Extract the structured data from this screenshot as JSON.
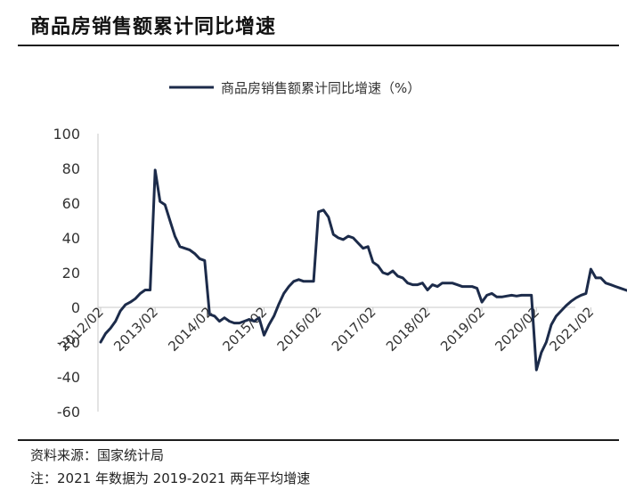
{
  "header": {
    "title": "商品房销售额累计同比增速"
  },
  "footer": {
    "source": "资料来源：国家统计局",
    "note": "注：2021 年数据为 2019-2021 两年平均增速"
  },
  "colors": {
    "line": "#1c2b4a",
    "axis": "#c8c8c8"
  },
  "chart_data": {
    "type": "line",
    "series": [
      {
        "name": "商品房销售额累计同比增速（%）",
        "x": [
          "2012/02",
          "2012/03",
          "2012/04",
          "2012/05",
          "2012/06",
          "2012/07",
          "2012/08",
          "2012/09",
          "2012/10",
          "2012/11",
          "2012/12",
          "2013/02",
          "2013/03",
          "2013/04",
          "2013/05",
          "2013/06",
          "2013/07",
          "2013/08",
          "2013/09",
          "2013/10",
          "2013/11",
          "2013/12",
          "2014/02",
          "2014/03",
          "2014/04",
          "2014/05",
          "2014/06",
          "2014/07",
          "2014/08",
          "2014/09",
          "2014/10",
          "2014/11",
          "2014/12",
          "2015/02",
          "2015/03",
          "2015/04",
          "2015/05",
          "2015/06",
          "2015/07",
          "2015/08",
          "2015/09",
          "2015/10",
          "2015/11",
          "2015/12",
          "2016/02",
          "2016/03",
          "2016/04",
          "2016/05",
          "2016/06",
          "2016/07",
          "2016/08",
          "2016/09",
          "2016/10",
          "2016/11",
          "2016/12",
          "2017/02",
          "2017/03",
          "2017/04",
          "2017/05",
          "2017/06",
          "2017/07",
          "2017/08",
          "2017/09",
          "2017/10",
          "2017/11",
          "2017/12",
          "2018/02",
          "2018/03",
          "2018/04",
          "2018/05",
          "2018/06",
          "2018/07",
          "2018/08",
          "2018/09",
          "2018/10",
          "2018/11",
          "2018/12",
          "2019/02",
          "2019/03",
          "2019/04",
          "2019/05",
          "2019/06",
          "2019/07",
          "2019/08",
          "2019/09",
          "2019/10",
          "2019/11",
          "2019/12",
          "2020/02",
          "2020/03",
          "2020/04",
          "2020/05",
          "2020/06",
          "2020/07",
          "2020/08",
          "2020/09",
          "2020/10",
          "2020/11",
          "2020/12",
          "2021/02",
          "2021/03",
          "2021/04",
          "2021/05",
          "2021/06",
          "2021/07",
          "2021/08",
          "2021/09",
          "2021/10"
        ],
        "values": [
          -20,
          -15,
          -12,
          -8,
          -2,
          1.5,
          3,
          5,
          8,
          10,
          10,
          79,
          61,
          59,
          50,
          41,
          35,
          34,
          33,
          31,
          28,
          27,
          -4,
          -5,
          -8,
          -6,
          -8,
          -9,
          -9,
          -8,
          -7,
          -8,
          -6,
          -16,
          -10,
          -5,
          2,
          8,
          12,
          15,
          16,
          15,
          15,
          15,
          55,
          56,
          52,
          42,
          40,
          39,
          41,
          40,
          37,
          34,
          35,
          26,
          24,
          20,
          19,
          21,
          18,
          17,
          14,
          13,
          13,
          14,
          10,
          13,
          12,
          14,
          14,
          14,
          13,
          12,
          12,
          12,
          11,
          3,
          7,
          8,
          6,
          6,
          6.5,
          7,
          6.5,
          7,
          7,
          7,
          -36,
          -26,
          -20,
          -10,
          -5,
          -2,
          1,
          3.5,
          5.5,
          7,
          8,
          22,
          17,
          17,
          14,
          13,
          12,
          11,
          10,
          9
        ]
      }
    ],
    "x_ticks": [
      "2012/02",
      "2013/02",
      "2014/02",
      "2015/02",
      "2016/02",
      "2017/02",
      "2018/02",
      "2019/02",
      "2020/02",
      "2021/02"
    ],
    "y_ticks": [
      100,
      80,
      60,
      40,
      20,
      0,
      -20,
      -40,
      -60
    ],
    "ylim": [
      -60,
      100
    ],
    "grid": false,
    "legend": "top-center"
  }
}
